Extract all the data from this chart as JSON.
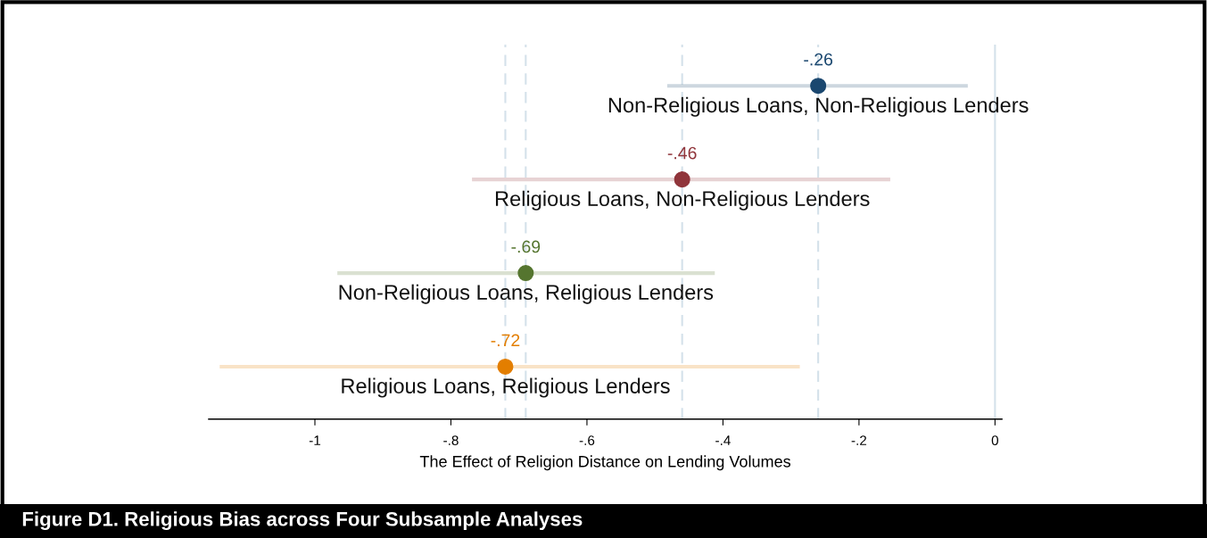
{
  "chart_data": {
    "type": "scatter",
    "orientation": "horizontal",
    "title": "Figure D1. Religious Bias across Four Subsample Analyses",
    "xlabel": "The Effect of Religion Distance on Lending Volumes",
    "categories": [
      "Non-Religious Loans, Non-Religious Lenders",
      "Religious Loans, Non-Religious Lenders",
      "Non-Religious Loans, Religious Lenders",
      "Religious Loans, Religious Lenders"
    ],
    "values": [
      -0.26,
      -0.46,
      -0.69,
      -0.72
    ],
    "value_labels": [
      "-.26",
      "-.46",
      "-.69",
      "-.72"
    ],
    "errors": [
      [
        -0.482,
        -0.04
      ],
      [
        -0.769,
        -0.154
      ],
      [
        -0.967,
        -0.412
      ],
      [
        -1.14,
        -0.287
      ]
    ],
    "colors": [
      "#1a476f",
      "#90353b",
      "#55752f",
      "#e37e00"
    ],
    "marker": "circle",
    "xlim": [
      -1.156,
      0.01
    ],
    "xticks": [
      {
        "value": -1,
        "label": "-1"
      },
      {
        "value": -0.8,
        "label": "-.8"
      },
      {
        "value": -0.6,
        "label": "-.6"
      },
      {
        "value": -0.4,
        "label": "-.4"
      },
      {
        "value": -0.2,
        "label": "-.2"
      },
      0
    ],
    "ref_lines": [
      {
        "axis": "x",
        "value": -0.26,
        "color": "#d4e1ea",
        "line_style": "dashed"
      },
      {
        "axis": "x",
        "value": -0.46,
        "color": "#d4e1ea",
        "line_style": "dashed"
      },
      {
        "axis": "x",
        "value": -0.69,
        "color": "#d4e1ea",
        "line_style": "dashed"
      },
      {
        "axis": "x",
        "value": -0.72,
        "color": "#d4e1ea",
        "line_style": "dashed"
      },
      {
        "axis": "x",
        "value": 0,
        "color": "#d4e1ea",
        "line_style": "solid"
      }
    ],
    "grid": false,
    "tick_labels": "x"
  }
}
